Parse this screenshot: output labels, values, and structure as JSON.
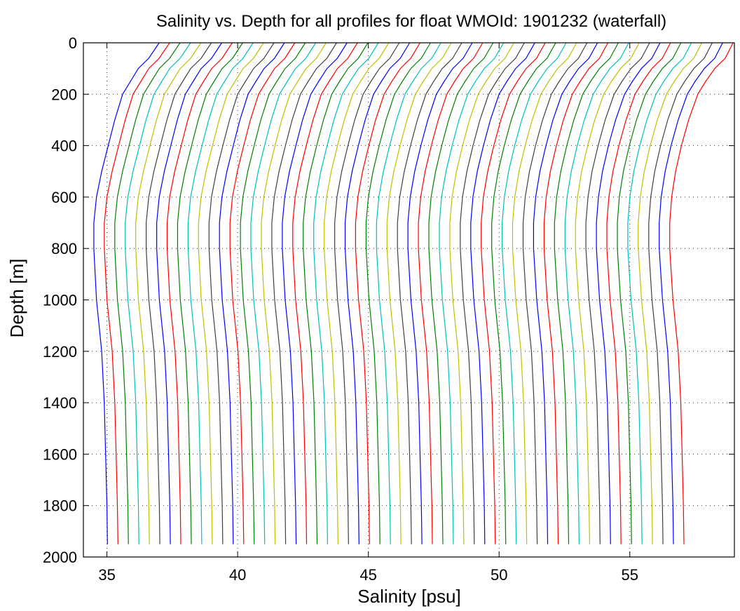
{
  "chart_data": {
    "type": "line",
    "title": "Salinity vs. Depth for all profiles for float WMOId: 1901232 (waterfall)",
    "xlabel": "Salinity [psu]",
    "ylabel": "Depth [m]",
    "xlim": [
      34.1,
      59.0
    ],
    "ylim": [
      0,
      2000
    ],
    "y_reversed": true,
    "x_ticks": [
      35,
      40,
      45,
      50,
      55
    ],
    "y_ticks": [
      0,
      200,
      400,
      600,
      800,
      1000,
      1200,
      1400,
      1600,
      1800,
      2000
    ],
    "grid": true,
    "profile_count": 56,
    "offset_per_profile": 0.4,
    "depths": [
      0,
      60,
      100,
      150,
      200,
      300,
      400,
      500,
      600,
      700,
      800,
      1000,
      1200,
      1400,
      1600,
      1800,
      1950
    ],
    "base_profile": [
      37.0,
      36.6,
      36.2,
      35.9,
      35.6,
      35.3,
      35.05,
      34.8,
      34.6,
      34.5,
      34.5,
      34.6,
      34.8,
      34.9,
      34.95,
      35.0,
      35.02
    ],
    "last_profile": [
      58.9,
      58.7,
      58.3,
      57.9,
      57.6,
      57.2,
      56.9,
      56.7,
      56.6,
      56.55,
      56.55,
      56.7,
      56.9,
      57.0,
      57.05,
      57.1,
      57.12
    ],
    "colors": [
      "#0000ff",
      "#ff0000",
      "#008000",
      "#00bfbf",
      "#bfbf00",
      "#404040"
    ]
  }
}
